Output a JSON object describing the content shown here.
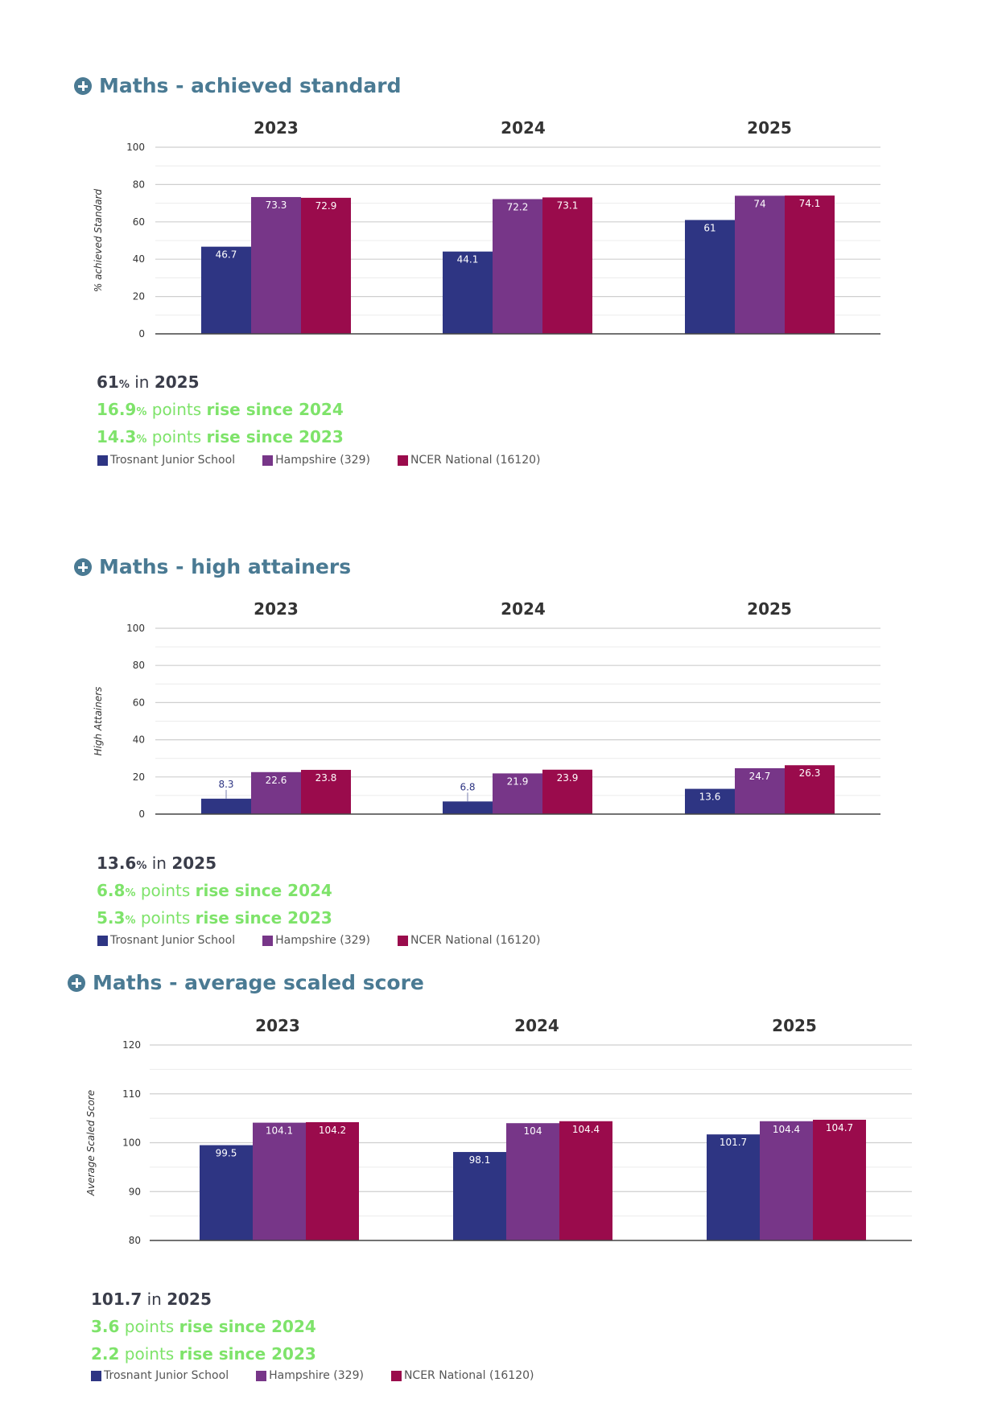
{
  "colors": {
    "school": "#2e3583",
    "hampshire": "#773688",
    "national": "#9a0b4c",
    "heading": "#4a7a93",
    "rise": "#7ee36a"
  },
  "legend": [
    {
      "label": "Trosnant Junior School",
      "color": "#2e3583"
    },
    {
      "label": "Hampshire (329)",
      "color": "#773688"
    },
    {
      "label": "NCER National (16120)",
      "color": "#9a0b4c"
    }
  ],
  "sections": [
    {
      "title": "Maths - achieved standard",
      "stat_main": {
        "value": "61",
        "unit": "%",
        "in": "in",
        "year": "2025"
      },
      "stat_rises": [
        {
          "value": "16.9",
          "unit": "%",
          "points": "points",
          "rise": "rise since 2024"
        },
        {
          "value": "14.3",
          "unit": "%",
          "points": "points",
          "rise": "rise since 2023"
        }
      ]
    },
    {
      "title": "Maths - high attainers",
      "stat_main": {
        "value": "13.6",
        "unit": "%",
        "in": "in",
        "year": "2025"
      },
      "stat_rises": [
        {
          "value": "6.8",
          "unit": "%",
          "points": "points",
          "rise": "rise since 2024"
        },
        {
          "value": "5.3",
          "unit": "%",
          "points": "points",
          "rise": "rise since 2023"
        }
      ]
    },
    {
      "title": "Maths - average scaled score",
      "stat_main": {
        "value": "101.7",
        "unit": "",
        "in": "in",
        "year": "2025"
      },
      "stat_rises": [
        {
          "value": "3.6",
          "unit": "",
          "points": "points",
          "rise": "rise since 2024"
        },
        {
          "value": "2.2",
          "unit": "",
          "points": "points",
          "rise": "rise since 2023"
        }
      ]
    }
  ],
  "chart_data": [
    {
      "type": "bar",
      "groups": [
        "2023",
        "2024",
        "2025"
      ],
      "ylabel": "% achieved Standard",
      "ylim": [
        0,
        100
      ],
      "yticks": [
        0,
        20,
        40,
        60,
        80,
        100
      ],
      "series": [
        {
          "name": "Trosnant Junior School",
          "values": [
            46.7,
            44.1,
            61
          ]
        },
        {
          "name": "Hampshire (329)",
          "values": [
            73.3,
            72.2,
            74
          ]
        },
        {
          "name": "NCER National (16120)",
          "values": [
            72.9,
            73.1,
            74.1
          ]
        }
      ]
    },
    {
      "type": "bar",
      "groups": [
        "2023",
        "2024",
        "2025"
      ],
      "ylabel": "High Attainers",
      "ylim": [
        0,
        100
      ],
      "yticks": [
        0,
        20,
        40,
        60,
        80,
        100
      ],
      "series": [
        {
          "name": "Trosnant Junior School",
          "values": [
            8.3,
            6.8,
            13.6
          ]
        },
        {
          "name": "Hampshire (329)",
          "values": [
            22.6,
            21.9,
            24.7
          ]
        },
        {
          "name": "NCER National (16120)",
          "values": [
            23.8,
            23.9,
            26.3
          ]
        }
      ]
    },
    {
      "type": "bar",
      "groups": [
        "2023",
        "2024",
        "2025"
      ],
      "ylabel": "Average Scaled Score",
      "ylim": [
        80,
        120
      ],
      "yticks": [
        80,
        90,
        100,
        110,
        120
      ],
      "series": [
        {
          "name": "Trosnant Junior School",
          "values": [
            99.5,
            98.1,
            101.7
          ]
        },
        {
          "name": "Hampshire (329)",
          "values": [
            104.1,
            104,
            104.4
          ]
        },
        {
          "name": "NCER National (16120)",
          "values": [
            104.2,
            104.4,
            104.7
          ]
        }
      ]
    }
  ]
}
